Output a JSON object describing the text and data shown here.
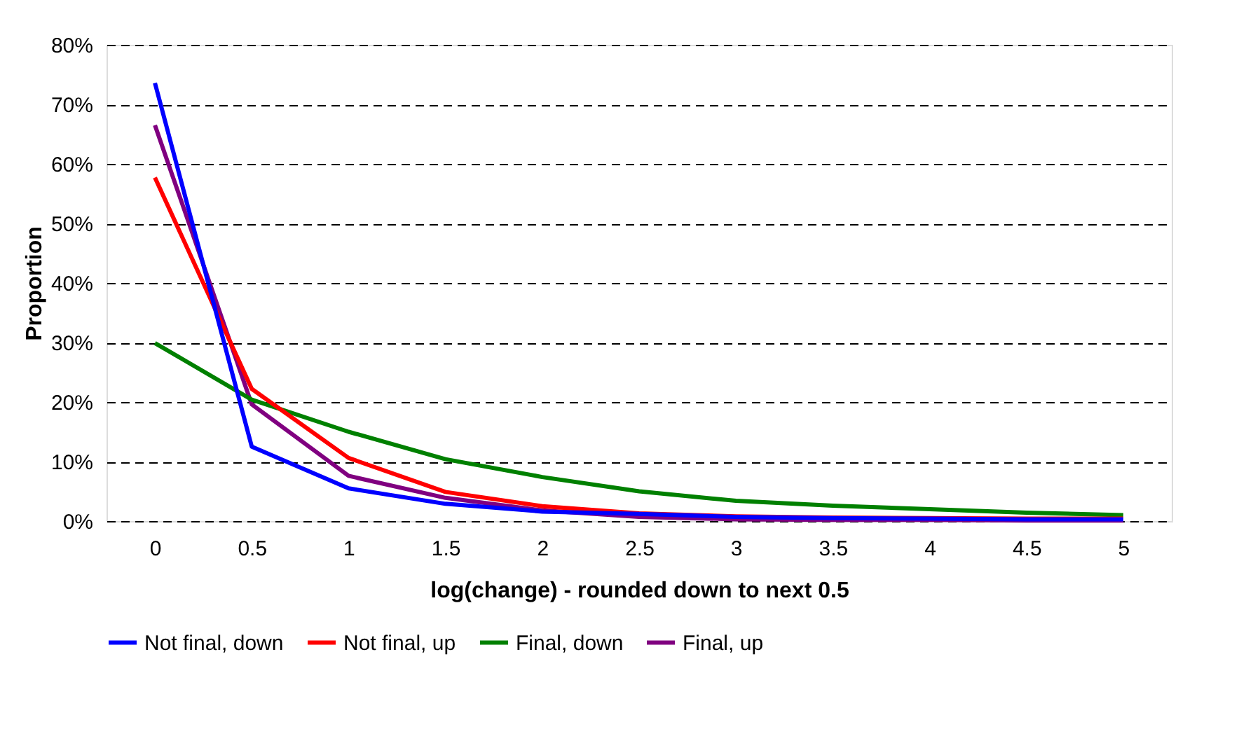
{
  "chart_data": {
    "type": "line",
    "xlabel": "log(change) - rounded down to next 0.5",
    "ylabel": "Proportion",
    "categories": [
      "0",
      "0.5",
      "1",
      "1.5",
      "2",
      "2.5",
      "3",
      "3.5",
      "4",
      "4.5",
      "5"
    ],
    "series": [
      {
        "name": "Not final, down",
        "color": "#0000ff",
        "values": [
          73.6,
          12.5,
          5.5,
          2.9,
          1.6,
          1.2,
          0.7,
          0.5,
          0.4,
          0.3,
          0.3
        ]
      },
      {
        "name": "Not final, up",
        "color": "#ff0000",
        "values": [
          57.7,
          22.2,
          10.6,
          4.9,
          2.5,
          1.3,
          0.8,
          0.6,
          0.5,
          0.4,
          0.4
        ]
      },
      {
        "name": "Final, down",
        "color": "#008000",
        "values": [
          29.9,
          20.4,
          15.0,
          10.4,
          7.4,
          5.0,
          3.4,
          2.6,
          2.0,
          1.4,
          1.0
        ]
      },
      {
        "name": "Final, up",
        "color": "#800080",
        "values": [
          66.5,
          19.6,
          7.6,
          3.9,
          1.8,
          0.7,
          0.3,
          0.2,
          0.2,
          0.1,
          0.1
        ]
      }
    ],
    "ylim": [
      0,
      80
    ],
    "yticks": [
      {
        "value": 0,
        "label": "0%"
      },
      {
        "value": 10,
        "label": "10%"
      },
      {
        "value": 20,
        "label": "20%"
      },
      {
        "value": 30,
        "label": "30%"
      },
      {
        "value": 40,
        "label": "40%"
      },
      {
        "value": 50,
        "label": "50%"
      },
      {
        "value": 60,
        "label": "60%"
      },
      {
        "value": 70,
        "label": "70%"
      },
      {
        "value": 80,
        "label": "80%"
      }
    ],
    "grid": "y",
    "legend": "bottom",
    "marker": "none",
    "line_style": "solid"
  }
}
